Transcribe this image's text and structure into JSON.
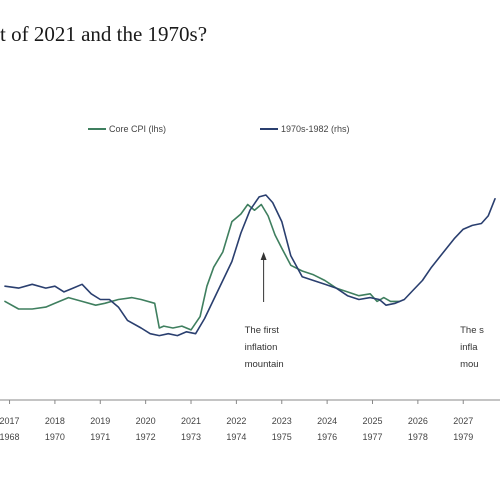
{
  "header": {
    "title": "t of 2021 and the 1970s?"
  },
  "chart_data": {
    "type": "line",
    "title": "t of 2021 and the 1970s?",
    "xlabel": "",
    "ylabel": "",
    "grid": false,
    "legend": "top",
    "x_tick_labels_top": [
      "2017",
      "2018",
      "2019",
      "2020",
      "2021",
      "2022",
      "2023",
      "2024",
      "2025",
      "2026",
      "2027"
    ],
    "x_tick_labels_bottom": [
      "1968",
      "1970",
      "1971",
      "1972",
      "1973",
      "1974",
      "1975",
      "1976",
      "1977",
      "1978",
      "1979"
    ],
    "x_range": [
      2016.9,
      2027.7
    ],
    "y_range_relative": [
      0,
      1
    ],
    "series": [
      {
        "name": "Core CPI (lhs)",
        "color": "#3f7f5f",
        "x": [
          2016.9,
          2017.2,
          2017.5,
          2017.8,
          2018.0,
          2018.3,
          2018.6,
          2018.9,
          2019.1,
          2019.4,
          2019.7,
          2019.9,
          2020.2,
          2020.3,
          2020.4,
          2020.6,
          2020.8,
          2021.0,
          2021.2,
          2021.35,
          2021.5,
          2021.7,
          2021.9,
          2022.1,
          2022.25,
          2022.4,
          2022.55,
          2022.7,
          2022.85,
          2023.0,
          2023.2,
          2023.45,
          2023.7,
          2023.95,
          2024.2,
          2024.45,
          2024.7,
          2024.95,
          2025.1,
          2025.25,
          2025.4,
          2025.6
        ],
        "values": [
          0.44,
          0.4,
          0.4,
          0.41,
          0.43,
          0.46,
          0.44,
          0.42,
          0.43,
          0.45,
          0.46,
          0.45,
          0.43,
          0.3,
          0.31,
          0.3,
          0.31,
          0.29,
          0.36,
          0.52,
          0.62,
          0.7,
          0.86,
          0.9,
          0.95,
          0.92,
          0.95,
          0.89,
          0.79,
          0.72,
          0.63,
          0.6,
          0.58,
          0.55,
          0.51,
          0.49,
          0.47,
          0.48,
          0.44,
          0.46,
          0.44,
          0.44
        ]
      },
      {
        "name": "1970s-1982 (rhs)",
        "color": "#2a3f6f",
        "x": [
          2016.9,
          2017.2,
          2017.5,
          2017.8,
          2018.0,
          2018.2,
          2018.4,
          2018.6,
          2018.8,
          2019.0,
          2019.2,
          2019.4,
          2019.6,
          2019.9,
          2020.1,
          2020.3,
          2020.5,
          2020.7,
          2020.9,
          2021.1,
          2021.3,
          2021.5,
          2021.7,
          2021.9,
          2022.1,
          2022.3,
          2022.5,
          2022.65,
          2022.8,
          2023.0,
          2023.2,
          2023.45,
          2023.7,
          2023.95,
          2024.2,
          2024.45,
          2024.7,
          2024.95,
          2025.15,
          2025.3,
          2025.5,
          2025.7,
          2025.9,
          2026.1,
          2026.3,
          2026.6,
          2026.8,
          2027.0,
          2027.2,
          2027.4,
          2027.55,
          2027.7
        ],
        "values": [
          0.52,
          0.51,
          0.53,
          0.51,
          0.52,
          0.49,
          0.51,
          0.53,
          0.48,
          0.45,
          0.45,
          0.41,
          0.34,
          0.3,
          0.27,
          0.26,
          0.27,
          0.26,
          0.28,
          0.27,
          0.35,
          0.45,
          0.55,
          0.65,
          0.8,
          0.92,
          0.99,
          1.0,
          0.96,
          0.86,
          0.68,
          0.57,
          0.55,
          0.53,
          0.51,
          0.47,
          0.45,
          0.46,
          0.45,
          0.42,
          0.43,
          0.45,
          0.5,
          0.55,
          0.62,
          0.71,
          0.77,
          0.82,
          0.84,
          0.85,
          0.89,
          0.98
        ]
      }
    ],
    "annotations": [
      {
        "lines": [
          "The first",
          "inflation",
          "mountain"
        ],
        "x": 2022.6
      },
      {
        "lines": [
          "The s",
          "infla",
          "mou"
        ],
        "x": 2027.35
      }
    ]
  }
}
